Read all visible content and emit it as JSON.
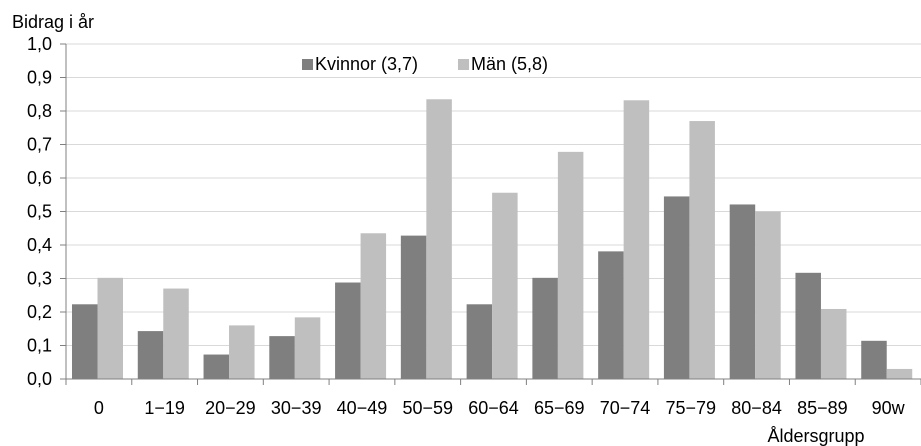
{
  "chart_data": {
    "type": "bar",
    "title": "",
    "ylabel": "Bidrag i år",
    "xlabel": "Åldersgrupp",
    "ylim": [
      0,
      1.0
    ],
    "yticks": [
      "0,0",
      "0,1",
      "0,2",
      "0,3",
      "0,4",
      "0,5",
      "0,6",
      "0,7",
      "0,8",
      "0,9",
      "1,0"
    ],
    "grid": true,
    "legend_position": "top-center",
    "categories": [
      "0",
      "1−19",
      "20−29",
      "30−39",
      "40−49",
      "50−59",
      "60−64",
      "65−69",
      "70−74",
      "75−79",
      "80−84",
      "85−89",
      "90w"
    ],
    "series": [
      {
        "name": "Kvinnor (3,7)",
        "color": "#7f7f7f",
        "values": [
          0.223,
          0.143,
          0.073,
          0.128,
          0.288,
          0.428,
          0.223,
          0.302,
          0.381,
          0.545,
          0.521,
          0.317,
          0.114
        ]
      },
      {
        "name": "Män (5,8)",
        "color": "#bfbfbf",
        "values": [
          0.302,
          0.27,
          0.16,
          0.184,
          0.435,
          0.835,
          0.556,
          0.678,
          0.832,
          0.77,
          0.5,
          0.209,
          0.03
        ]
      }
    ]
  }
}
